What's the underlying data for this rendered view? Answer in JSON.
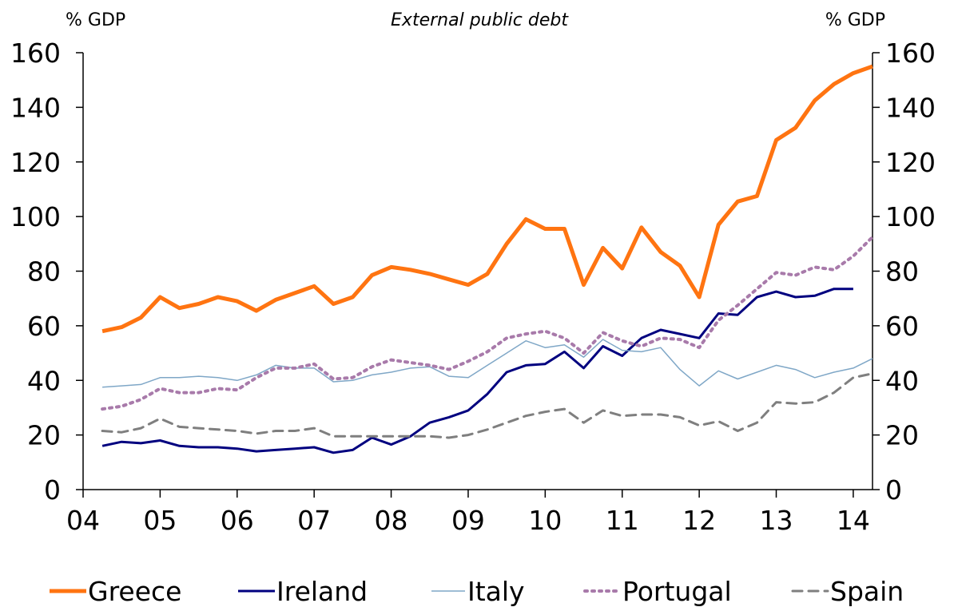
{
  "chart_data": {
    "type": "line",
    "title": "External public debt",
    "ylabel_left": "% GDP",
    "ylabel_right": "% GDP",
    "ylim": [
      0,
      160
    ],
    "xlim": [
      2004.0,
      2014.25
    ],
    "yticks": [
      0,
      20,
      40,
      60,
      80,
      100,
      120,
      140,
      160
    ],
    "xticks": [
      {
        "value": 2004,
        "label": "04"
      },
      {
        "value": 2005,
        "label": "05"
      },
      {
        "value": 2006,
        "label": "06"
      },
      {
        "value": 2007,
        "label": "07"
      },
      {
        "value": 2008,
        "label": "08"
      },
      {
        "value": 2009,
        "label": "09"
      },
      {
        "value": 2010,
        "label": "10"
      },
      {
        "value": 2011,
        "label": "11"
      },
      {
        "value": 2012,
        "label": "12"
      },
      {
        "value": 2013,
        "label": "13"
      },
      {
        "value": 2014,
        "label": "14"
      }
    ],
    "x": [
      2004.25,
      2004.5,
      2004.75,
      2005.0,
      2005.25,
      2005.5,
      2005.75,
      2006.0,
      2006.25,
      2006.5,
      2006.75,
      2007.0,
      2007.25,
      2007.5,
      2007.75,
      2008.0,
      2008.25,
      2008.5,
      2008.75,
      2009.0,
      2009.25,
      2009.5,
      2009.75,
      2010.0,
      2010.25,
      2010.5,
      2010.75,
      2011.0,
      2011.25,
      2011.5,
      2011.75,
      2012.0,
      2012.25,
      2012.5,
      2012.75,
      2013.0,
      2013.25,
      2013.5,
      2013.75,
      2014.0,
      2014.25
    ],
    "grid": false,
    "legend_position": "bottom",
    "series": [
      {
        "name": "Greece",
        "color": "#ff7411",
        "style": "solid",
        "width": 5,
        "values": [
          58,
          59.5,
          63,
          70.5,
          66.5,
          68,
          70.5,
          69,
          65.5,
          69.5,
          72,
          74.5,
          68,
          70.5,
          78.5,
          81.5,
          80.5,
          79,
          77,
          75,
          79,
          90,
          99,
          95.5,
          95.5,
          75,
          88.5,
          81,
          96,
          87,
          82,
          70.5,
          97,
          105.5,
          107.5,
          128,
          132.5,
          142.5,
          148.5,
          152.5,
          155
        ]
      },
      {
        "name": "Ireland",
        "color": "#00007f",
        "style": "solid",
        "width": 3,
        "values": [
          16,
          17.5,
          17,
          18,
          16,
          15.5,
          15.5,
          15,
          14,
          14.5,
          15,
          15.5,
          13.5,
          14.5,
          19,
          16.5,
          19.5,
          24.5,
          26.5,
          29,
          35,
          43,
          45.5,
          46,
          50.5,
          44.5,
          52.5,
          49,
          55.5,
          58.5,
          57,
          55.5,
          64.5,
          64,
          70.5,
          72.5,
          70.5,
          71,
          73.5,
          73.5,
          null
        ]
      },
      {
        "name": "Italy",
        "color": "#7fa7c7",
        "style": "solid",
        "width": 1.5,
        "values": [
          37.5,
          38,
          38.5,
          41,
          41,
          41.5,
          41,
          40,
          42,
          45.5,
          44.5,
          44.5,
          39.5,
          40,
          42,
          43,
          44.5,
          45,
          41.5,
          41,
          45.5,
          50,
          54.5,
          52,
          53,
          48.5,
          55,
          51,
          50.5,
          52,
          44,
          38,
          43.5,
          40.5,
          43,
          45.5,
          44,
          41,
          43,
          44.5,
          48
        ]
      },
      {
        "name": "Portugal",
        "color": "#a87aaa",
        "style": "dotted",
        "width": 4,
        "values": [
          29.5,
          30.5,
          33,
          37,
          35.5,
          35.5,
          37,
          36.5,
          41,
          44.5,
          44.5,
          46,
          40.5,
          41,
          45,
          47.5,
          46.5,
          45.5,
          44,
          47,
          50.5,
          55.5,
          57,
          58,
          55.5,
          50,
          57.5,
          54.5,
          52.5,
          55.5,
          55,
          52,
          62,
          67.5,
          73.5,
          79.5,
          78.5,
          81.5,
          80.5,
          85.5,
          92.5
        ]
      },
      {
        "name": "Spain",
        "color": "#7f7f7f",
        "style": "dashed",
        "width": 3,
        "values": [
          21.5,
          21,
          22.5,
          26,
          23,
          22.5,
          22,
          21.5,
          20.5,
          21.5,
          21.5,
          22.5,
          19.5,
          19.5,
          19.5,
          19.5,
          19.5,
          19.5,
          19,
          20,
          22,
          24.5,
          27,
          28.5,
          29.5,
          24.5,
          29,
          27,
          27.5,
          27.5,
          26.5,
          23.5,
          25,
          21.5,
          24.5,
          32,
          31.5,
          32,
          35.5,
          41,
          42.5
        ]
      }
    ]
  }
}
